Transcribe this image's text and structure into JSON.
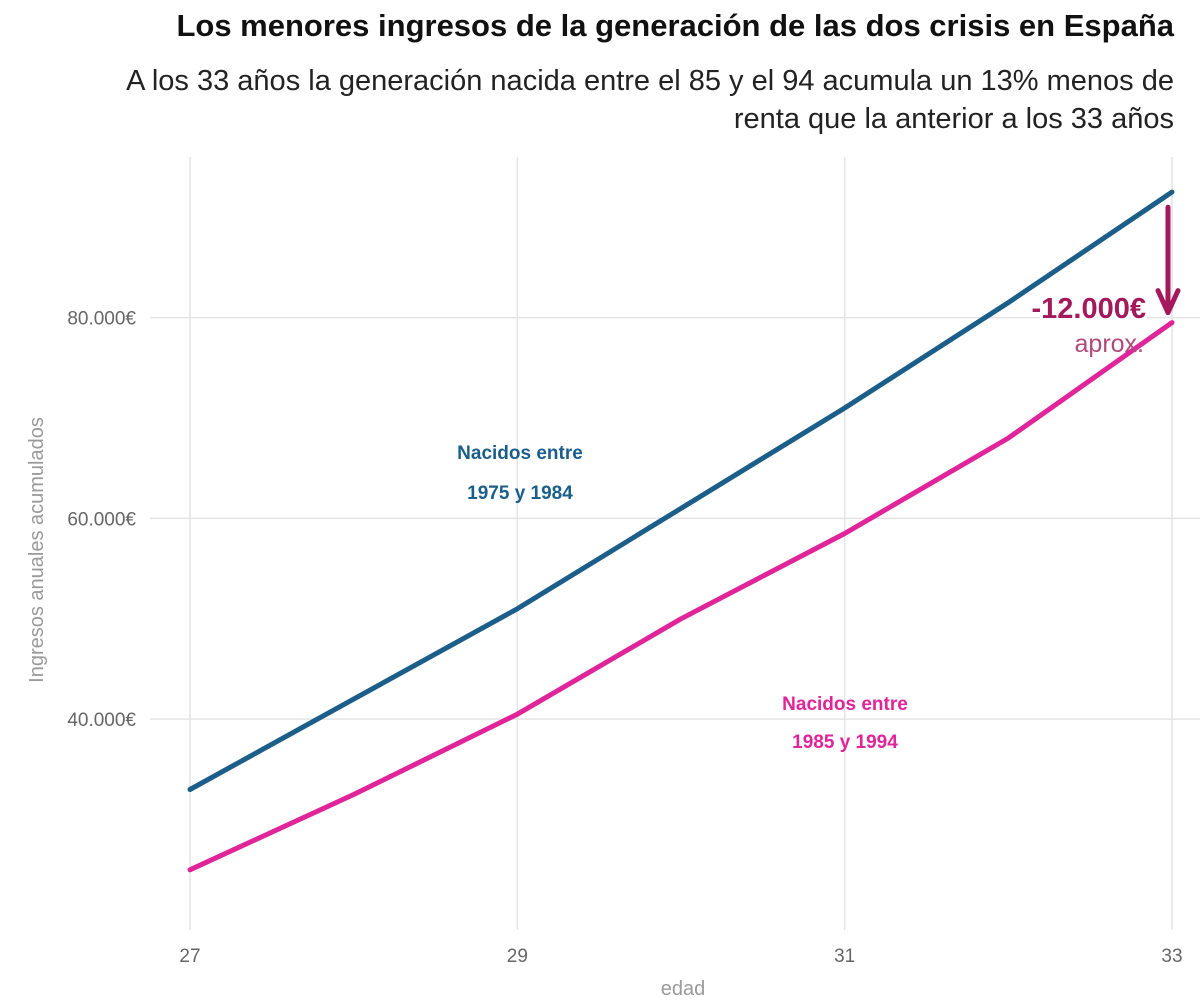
{
  "header": {
    "title": "Los menores ingresos de la generación de las dos crisis en España",
    "subtitle": "A los 33 años la generación nacida entre el 85 y el 94 acumula un 13% menos de renta que la anterior a los 33 años"
  },
  "chart_data": {
    "type": "line",
    "xlabel": "edad",
    "ylabel": "Ingresos anuales acumulados",
    "xlim": [
      27,
      33
    ],
    "ylim": [
      19000,
      96000
    ],
    "x_ticks": [
      27,
      29,
      31,
      33
    ],
    "x_tick_labels": [
      "27",
      "29",
      "31",
      "33"
    ],
    "y_ticks": [
      40000,
      60000,
      80000
    ],
    "y_tick_labels": [
      "40.000€",
      "60.000€",
      "80.000€"
    ],
    "grid": true,
    "x": [
      27,
      28,
      29,
      30,
      31,
      32,
      33
    ],
    "series": [
      {
        "label_lines": [
          "Nacidos entre",
          "1975 y 1984"
        ],
        "color": "#1b5e8a",
        "values": [
          33000,
          42000,
          51000,
          61000,
          71000,
          81500,
          92500
        ]
      },
      {
        "label_lines": [
          "Nacidos entre",
          "1985 y 1994"
        ],
        "color": "#e0249a",
        "values": [
          25000,
          32500,
          40500,
          50000,
          58500,
          68000,
          79500
        ]
      }
    ],
    "annotation": {
      "text": "-12.000€",
      "subtext": "aprox.",
      "color": "#a3195b",
      "x": 33,
      "from": 91000,
      "to": 80500
    }
  }
}
